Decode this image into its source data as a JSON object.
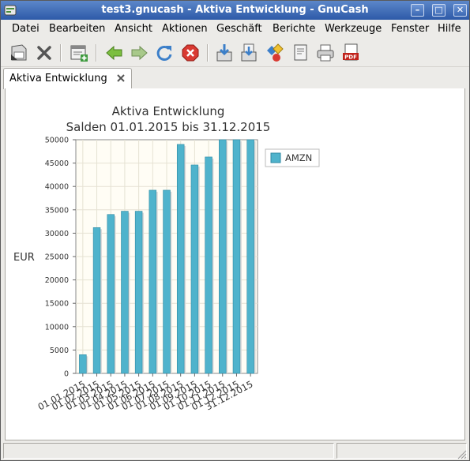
{
  "window": {
    "title": "test3.gnucash - Aktiva Entwicklung - GnuCash"
  },
  "menu": [
    {
      "label": "Datei",
      "name": "menu-datei"
    },
    {
      "label": "Bearbeiten",
      "name": "menu-bearbeiten"
    },
    {
      "label": "Ansicht",
      "name": "menu-ansicht"
    },
    {
      "label": "Aktionen",
      "name": "menu-aktionen"
    },
    {
      "label": "Geschäft",
      "name": "menu-geschaeft"
    },
    {
      "label": "Berichte",
      "name": "menu-berichte"
    },
    {
      "label": "Werkzeuge",
      "name": "menu-werkzeuge"
    },
    {
      "label": "Fenster",
      "name": "menu-fenster"
    },
    {
      "label": "Hilfe",
      "name": "menu-hilfe"
    }
  ],
  "toolbar": {
    "icons": [
      "save-icon",
      "close-icon",
      "new-invoice-icon",
      "back-icon",
      "forward-icon",
      "reload-icon",
      "stop-icon",
      "export-icon",
      "export-alt-icon",
      "options-icon",
      "edit-icon",
      "print-icon",
      "pdf-icon"
    ],
    "pdf_label": "PDF"
  },
  "tab": {
    "label": "Aktiva Entwicklung"
  },
  "colors": {
    "bar": "#4fb3cc",
    "bar_stroke": "#2f8aa3",
    "plot_bg": "#fffdf5",
    "grid": "#e6e2d3"
  },
  "chart_data": {
    "type": "bar",
    "title": "Aktiva Entwicklung",
    "subtitle": "Salden 01.01.2015 bis 31.12.2015",
    "xlabel": "",
    "ylabel": "EUR",
    "ylim": [
      0,
      50000
    ],
    "yticks": [
      0,
      5000,
      10000,
      15000,
      20000,
      25000,
      30000,
      35000,
      40000,
      45000,
      50000
    ],
    "grid": true,
    "legend_position": "right",
    "categories": [
      "01.01.2015",
      "01.02.2015",
      "01.03.2015",
      "01.04.2015",
      "01.05.2015",
      "01.06.2015",
      "01.07.2015",
      "01.08.2015",
      "01.09.2015",
      "01.10.2015",
      "01.11.2015",
      "01.12.2015",
      "31.12.2015"
    ],
    "series": [
      {
        "name": "AMZN",
        "values": [
          4000,
          31200,
          34000,
          34700,
          34700,
          39200,
          39200,
          49000,
          44600,
          46300,
          50000,
          50000,
          50000
        ]
      }
    ]
  }
}
